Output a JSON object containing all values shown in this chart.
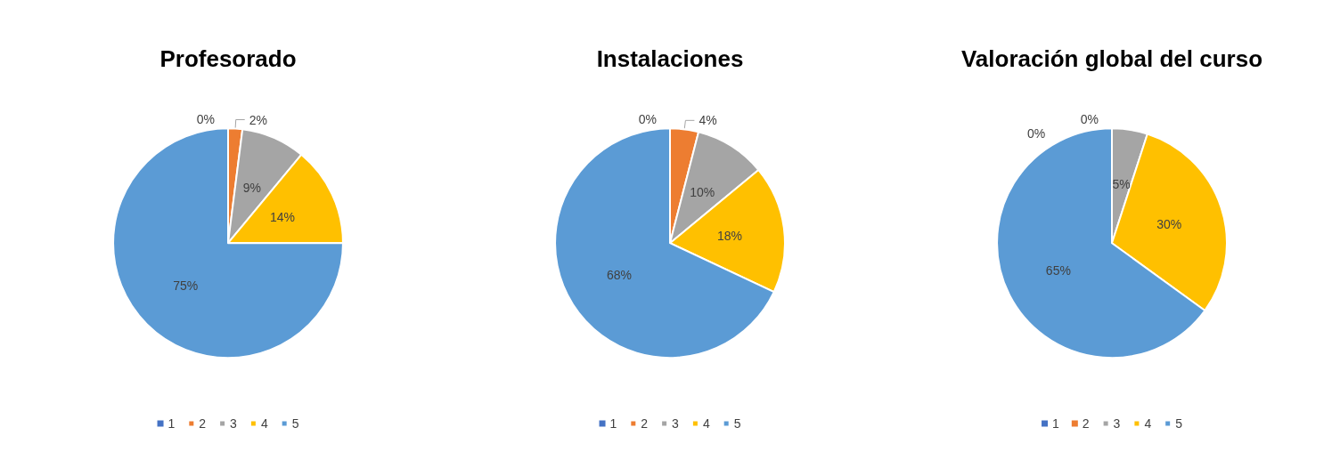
{
  "chart_data": [
    {
      "type": "pie",
      "title": "Profesorado",
      "categories": [
        "1",
        "2",
        "3",
        "4",
        "5"
      ],
      "values": [
        0,
        2,
        9,
        14,
        75
      ],
      "value_labels": [
        "0%",
        "2%",
        "9%",
        "14%",
        "75%"
      ],
      "colors": [
        "#4472c4",
        "#ed7d31",
        "#a5a5a5",
        "#ffc000",
        "#5b9bd5"
      ],
      "legend": "bottom"
    },
    {
      "type": "pie",
      "title": "Instalaciones",
      "categories": [
        "1",
        "2",
        "3",
        "4",
        "5"
      ],
      "values": [
        0,
        4,
        10,
        18,
        68
      ],
      "value_labels": [
        "0%",
        "4%",
        "10%",
        "18%",
        "68%"
      ],
      "colors": [
        "#4472c4",
        "#ed7d31",
        "#a5a5a5",
        "#ffc000",
        "#5b9bd5"
      ],
      "legend": "bottom"
    },
    {
      "type": "pie",
      "title": "Valoración global del curso",
      "categories": [
        "1",
        "2",
        "3",
        "4",
        "5"
      ],
      "values": [
        0,
        0,
        5,
        30,
        65
      ],
      "value_labels": [
        "0%",
        "0%",
        "5%",
        "30%",
        "65%"
      ],
      "colors": [
        "#4472c4",
        "#ed7d31",
        "#a5a5a5",
        "#ffc000",
        "#5b9bd5"
      ],
      "legend": "bottom"
    }
  ]
}
